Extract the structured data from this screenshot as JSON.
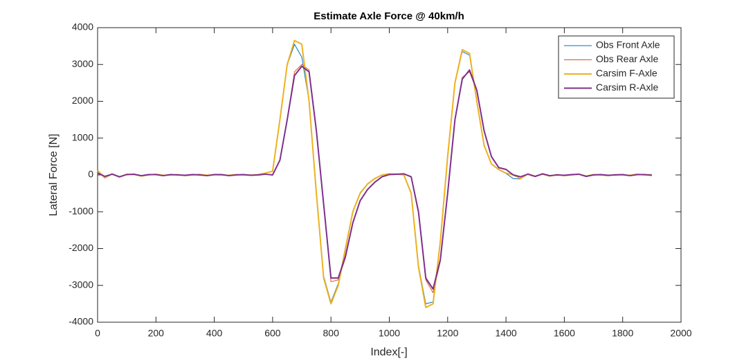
{
  "chart_data": {
    "type": "line",
    "title": "Estimate Axle Force @ 40km/h",
    "xlabel": "Index[-]",
    "ylabel": "Lateral Force [N]",
    "x": [
      0,
      25,
      50,
      75,
      100,
      125,
      150,
      175,
      200,
      225,
      250,
      275,
      300,
      325,
      350,
      375,
      400,
      425,
      450,
      475,
      500,
      525,
      550,
      575,
      600,
      625,
      650,
      675,
      700,
      725,
      750,
      775,
      800,
      825,
      850,
      875,
      900,
      925,
      950,
      975,
      1000,
      1025,
      1050,
      1075,
      1100,
      1125,
      1150,
      1175,
      1200,
      1225,
      1250,
      1275,
      1300,
      1325,
      1350,
      1375,
      1400,
      1425,
      1450,
      1475,
      1500,
      1525,
      1550,
      1575,
      1600,
      1625,
      1650,
      1675,
      1700,
      1725,
      1750,
      1775,
      1800,
      1825,
      1850,
      1875,
      1900
    ],
    "series": [
      {
        "name": "Obs Front Axle",
        "color": "#0072BD",
        "width": 1,
        "values": [
          110,
          -90,
          30,
          -60,
          20,
          10,
          -30,
          0,
          20,
          -10,
          0,
          10,
          -20,
          0,
          15,
          -10,
          5,
          0,
          -10,
          10,
          0,
          -5,
          10,
          50,
          100,
          1480,
          2980,
          3550,
          3200,
          2000,
          -480,
          -2750,
          -3450,
          -2950,
          -1950,
          -980,
          -480,
          -240,
          -90,
          0,
          40,
          20,
          10,
          -480,
          -2450,
          -3500,
          -3450,
          -1780,
          520,
          2480,
          3350,
          3250,
          1980,
          790,
          290,
          140,
          40,
          -100,
          -110,
          30,
          -40,
          20,
          -30,
          10,
          -20,
          0,
          20,
          -30,
          10,
          0,
          -20,
          10,
          0,
          -10,
          20,
          0,
          10
        ]
      },
      {
        "name": "Obs Rear Axle",
        "color": "#D95319",
        "width": 1,
        "values": [
          60,
          -40,
          20,
          -50,
          10,
          20,
          -20,
          10,
          10,
          -20,
          10,
          0,
          -10,
          10,
          0,
          -20,
          10,
          10,
          -20,
          0,
          10,
          -10,
          0,
          20,
          0,
          420,
          1520,
          2800,
          3000,
          2850,
          1250,
          -780,
          -2900,
          -2850,
          -2250,
          -1320,
          -710,
          -410,
          -210,
          -40,
          20,
          30,
          20,
          -60,
          -1050,
          -2850,
          -3200,
          -2350,
          -480,
          1520,
          2650,
          2800,
          2280,
          1180,
          480,
          190,
          140,
          10,
          -60,
          20,
          -40,
          30,
          -20,
          0,
          -10,
          10,
          20,
          -40,
          0,
          10,
          -10,
          0,
          10,
          -20,
          10,
          10,
          -20
        ]
      },
      {
        "name": "Carsim F-Axle",
        "color": "#EDB120",
        "width": 2,
        "values": [
          120,
          -80,
          30,
          -60,
          20,
          10,
          -30,
          0,
          20,
          -10,
          0,
          10,
          -20,
          0,
          15,
          -10,
          5,
          0,
          -10,
          10,
          0,
          -5,
          10,
          50,
          100,
          1500,
          3000,
          3650,
          3550,
          2000,
          -500,
          -2800,
          -3500,
          -3000,
          -2000,
          -1000,
          -500,
          -250,
          -100,
          0,
          30,
          20,
          0,
          -500,
          -2500,
          -3600,
          -3500,
          -1800,
          500,
          2500,
          3400,
          3300,
          2000,
          800,
          300,
          150,
          50,
          0,
          -100,
          30,
          -40,
          20,
          -30,
          10,
          -20,
          0,
          20,
          -30,
          10,
          0,
          -20,
          10,
          0,
          -10,
          20,
          0,
          10
        ]
      },
      {
        "name": "Carsim R-Axle",
        "color": "#7E2F8E",
        "width": 2,
        "values": [
          50,
          -40,
          20,
          -50,
          10,
          20,
          -20,
          10,
          10,
          -20,
          10,
          0,
          -10,
          10,
          0,
          -20,
          10,
          10,
          -20,
          0,
          10,
          -10,
          0,
          20,
          0,
          400,
          1500,
          2700,
          2950,
          2800,
          1200,
          -800,
          -2800,
          -2800,
          -2200,
          -1300,
          -700,
          -400,
          -200,
          -50,
          10,
          20,
          30,
          -50,
          -1000,
          -2800,
          -3100,
          -2300,
          -500,
          1500,
          2600,
          2850,
          2300,
          1200,
          500,
          200,
          150,
          0,
          -50,
          20,
          -40,
          30,
          -20,
          0,
          -10,
          10,
          20,
          -40,
          0,
          10,
          -10,
          0,
          10,
          -20,
          10,
          10,
          -10
        ]
      }
    ],
    "xlim": [
      0,
      2000
    ],
    "xticks": [
      0,
      200,
      400,
      600,
      800,
      1000,
      1200,
      1400,
      1600,
      1800,
      2000
    ],
    "ylim": [
      -4000,
      4000
    ],
    "yticks": [
      -4000,
      -3000,
      -2000,
      -1000,
      0,
      1000,
      2000,
      3000,
      4000
    ],
    "grid": false,
    "legend": "upper right"
  }
}
